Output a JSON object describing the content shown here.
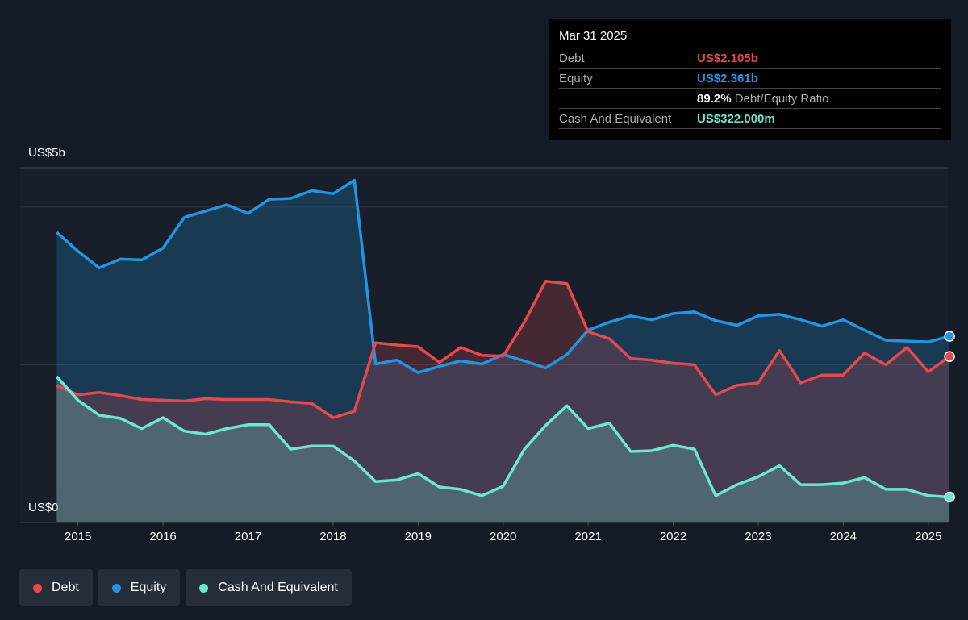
{
  "chart_data": {
    "type": "line",
    "x": [
      2014.75,
      2015,
      2015.25,
      2015.5,
      2015.75,
      2016,
      2016.25,
      2016.5,
      2016.75,
      2017,
      2017.25,
      2017.5,
      2017.75,
      2018,
      2018.25,
      2018.5,
      2018.75,
      2019,
      2019.25,
      2019.5,
      2019.75,
      2020,
      2020.25,
      2020.5,
      2020.75,
      2021,
      2021.25,
      2021.5,
      2021.75,
      2022,
      2022.25,
      2022.5,
      2022.75,
      2023,
      2023.25,
      2023.5,
      2023.75,
      2024,
      2024.25,
      2024.5,
      2024.75,
      2025,
      2025.25
    ],
    "series": [
      {
        "name": "Debt",
        "color": "#e5484d",
        "values": [
          1.74,
          1.62,
          1.65,
          1.61,
          1.56,
          1.55,
          1.54,
          1.57,
          1.56,
          1.56,
          1.56,
          1.53,
          1.51,
          1.33,
          1.41,
          2.28,
          2.25,
          2.23,
          2.03,
          2.22,
          2.12,
          2.11,
          2.54,
          3.06,
          3.03,
          2.42,
          2.33,
          2.08,
          2.06,
          2.02,
          2.0,
          1.62,
          1.74,
          1.77,
          2.18,
          1.77,
          1.87,
          1.87,
          2.15,
          2.0,
          2.22,
          1.91,
          2.105
        ]
      },
      {
        "name": "Equity",
        "color": "#2394df",
        "values": [
          3.68,
          3.44,
          3.23,
          3.34,
          3.33,
          3.48,
          3.87,
          3.95,
          4.03,
          3.92,
          4.1,
          4.11,
          4.21,
          4.17,
          4.34,
          2.01,
          2.06,
          1.9,
          1.98,
          2.05,
          2.01,
          2.13,
          2.05,
          1.96,
          2.13,
          2.44,
          2.54,
          2.62,
          2.57,
          2.65,
          2.67,
          2.56,
          2.5,
          2.62,
          2.64,
          2.57,
          2.49,
          2.57,
          2.44,
          2.31,
          2.3,
          2.29,
          2.361
        ]
      },
      {
        "name": "Cash And Equivalent",
        "color": "#6de5d3",
        "values": [
          1.85,
          1.55,
          1.36,
          1.32,
          1.19,
          1.33,
          1.16,
          1.12,
          1.19,
          1.24,
          1.24,
          0.93,
          0.97,
          0.97,
          0.78,
          0.52,
          0.54,
          0.62,
          0.45,
          0.42,
          0.34,
          0.46,
          0.93,
          1.23,
          1.48,
          1.19,
          1.26,
          0.9,
          0.91,
          0.98,
          0.93,
          0.34,
          0.48,
          0.58,
          0.72,
          0.48,
          0.48,
          0.5,
          0.57,
          0.42,
          0.42,
          0.34,
          0.322
        ]
      }
    ],
    "xlim": [
      2014.32,
      2025.23
    ],
    "xticks": [
      2015,
      2016,
      2017,
      2018,
      2019,
      2020,
      2021,
      2022,
      2023,
      2024,
      2025
    ],
    "ylim": [
      0,
      4.5
    ],
    "yticks": [
      {
        "value": 0,
        "label": "US$0"
      },
      {
        "value": 4.5,
        "label": "US$5b"
      }
    ],
    "grid_lines": [
      2,
      4
    ],
    "tooltip": {
      "date": "Mar 31 2025",
      "rows": [
        {
          "label": "Debt",
          "value": "US$2.105b"
        },
        {
          "label": "Equity",
          "value": "US$2.361b"
        }
      ],
      "ratio": "89.2%",
      "ratio_label": "Debt/Equity Ratio",
      "cash": {
        "label": "Cash And Equivalent",
        "value": "US$322.000m"
      }
    }
  }
}
